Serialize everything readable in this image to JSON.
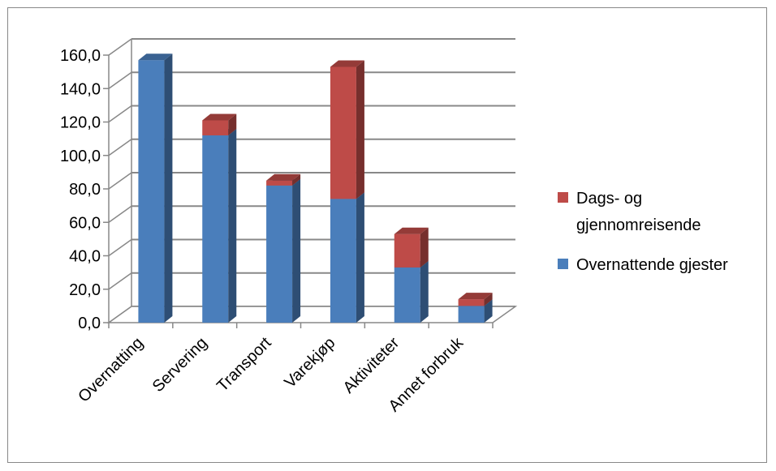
{
  "chart_data": {
    "type": "bar",
    "stacked": true,
    "three_d": true,
    "categories": [
      "Overnatting",
      "Servering",
      "Transport",
      "Varekjøp",
      "Aktiviteter",
      "Annet forbruk"
    ],
    "series": [
      {
        "name": "Overnattende gjester",
        "values": [
          157,
          112,
          82,
          74,
          33,
          10
        ],
        "color": "#4a7ebb"
      },
      {
        "name": "Dags- og gjennomreisende",
        "values": [
          0,
          9,
          3,
          79,
          20,
          4
        ],
        "color": "#be4b48"
      }
    ],
    "legend": [
      {
        "series": "Dags- og gjennomreisende",
        "lines": [
          "Dags- og",
          "gjennomreisende"
        ],
        "color": "#be4b48"
      },
      {
        "series": "Overnattende gjester",
        "lines": [
          "Overnattende gjester"
        ],
        "color": "#4a7ebb"
      }
    ],
    "y_ticks": [
      "0,0",
      "20,0",
      "40,0",
      "60,0",
      "80,0",
      "100,0",
      "120,0",
      "140,0",
      "160,0"
    ],
    "ylim": [
      0,
      160
    ],
    "grid": true,
    "legend_position": "right",
    "title": "",
    "xlabel": "",
    "ylabel": ""
  }
}
